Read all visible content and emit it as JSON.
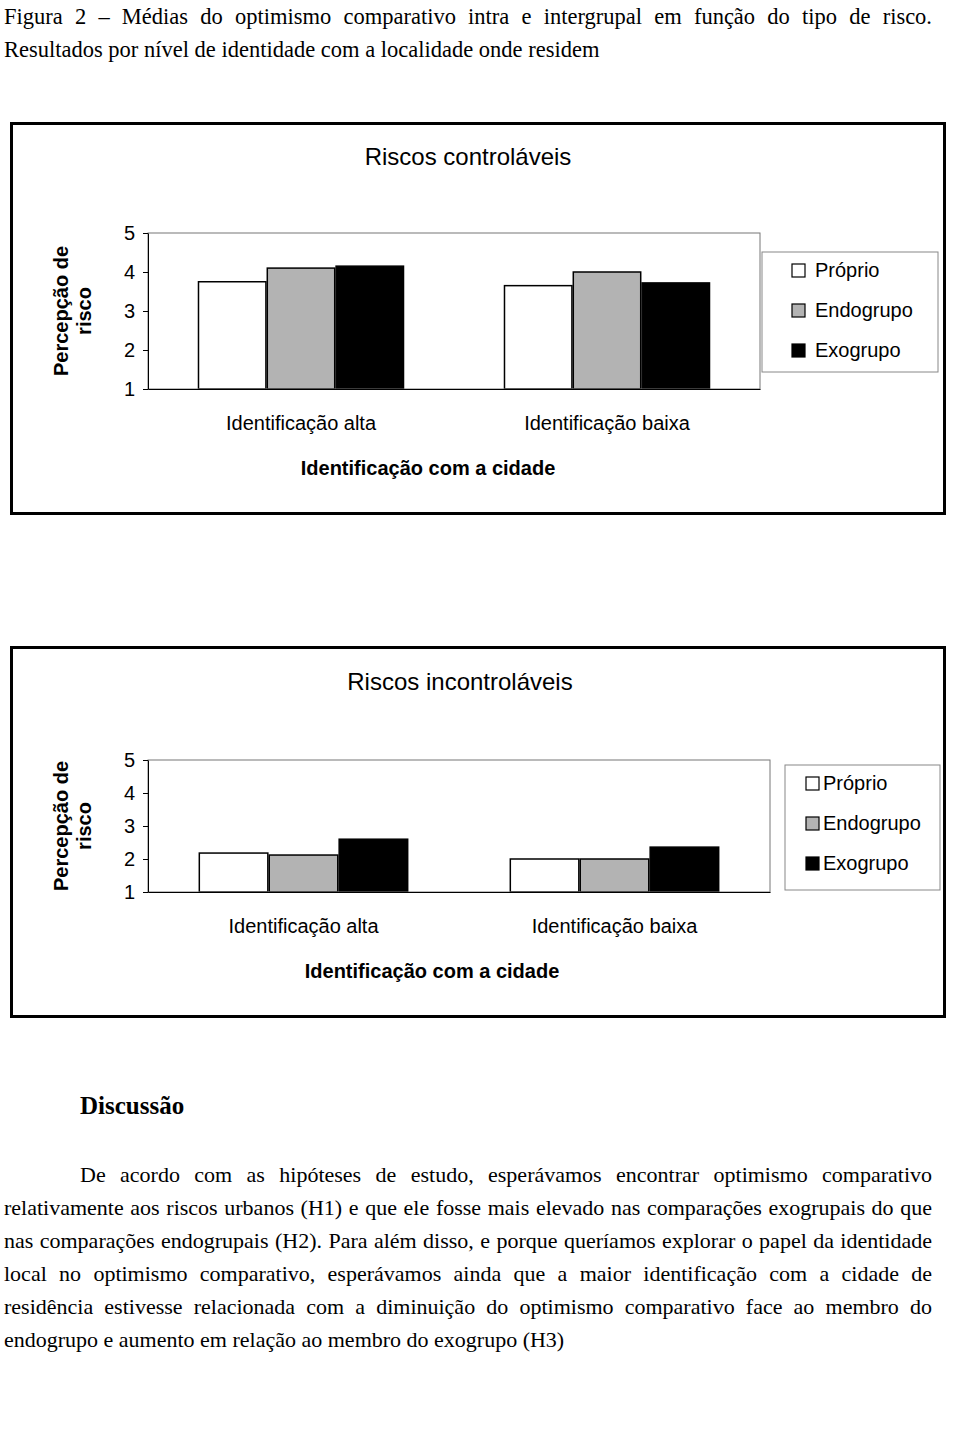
{
  "caption": "Figura 2 – Médias do optimismo comparativo intra e intergrupal em função do tipo de risco. Resultados por nível de identidade com a localidade onde residem",
  "chart_data": [
    {
      "type": "bar",
      "title": "Riscos controláveis",
      "x_label": "Identificação com a cidade",
      "y_label": "Percepção de risco",
      "categories": [
        "Identificação alta",
        "Identificação baixa"
      ],
      "series": [
        {
          "name": "Próprio",
          "color": "#ffffff",
          "values": [
            3.75,
            3.65
          ]
        },
        {
          "name": "Endogrupo",
          "color": "#b3b3b3",
          "values": [
            4.1,
            4.0
          ]
        },
        {
          "name": "Exogrupo",
          "color": "#000000",
          "values": [
            4.15,
            3.72
          ]
        }
      ],
      "ylim": [
        1,
        5
      ],
      "yticks": [
        1,
        2,
        3,
        4,
        5
      ],
      "legend": "right"
    },
    {
      "type": "bar",
      "title": "Riscos incontroláveis",
      "x_label": "Identificação com a cidade",
      "y_label": "Percepção de risco",
      "categories": [
        "Identificação alta",
        "Identificação baixa"
      ],
      "series": [
        {
          "name": "Próprio",
          "color": "#ffffff",
          "values": [
            2.18,
            2.0
          ]
        },
        {
          "name": "Endogrupo",
          "color": "#b3b3b3",
          "values": [
            2.12,
            2.0
          ]
        },
        {
          "name": "Exogrupo",
          "color": "#000000",
          "values": [
            2.6,
            2.36
          ]
        }
      ],
      "ylim": [
        1,
        5
      ],
      "yticks": [
        1,
        2,
        3,
        4,
        5
      ],
      "legend": "right"
    }
  ],
  "section": {
    "heading": "Discussão",
    "paragraphs": [
      "De acordo com as hipóteses de estudo, esperávamos encontrar optimismo comparativo relativamente aos riscos urbanos (H1) e que ele fosse mais elevado nas comparações exogrupais do que nas comparações endogrupais (H2). Para além disso, e porque queríamos explorar o papel da identidade local no optimismo comparativo, esperávamos ainda que a maior identificação com a cidade de residência estivesse relacionada com a diminuição do optimismo comparativo face ao membro do endogrupo e aumento em relação ao membro do exogrupo (H3)"
    ]
  }
}
